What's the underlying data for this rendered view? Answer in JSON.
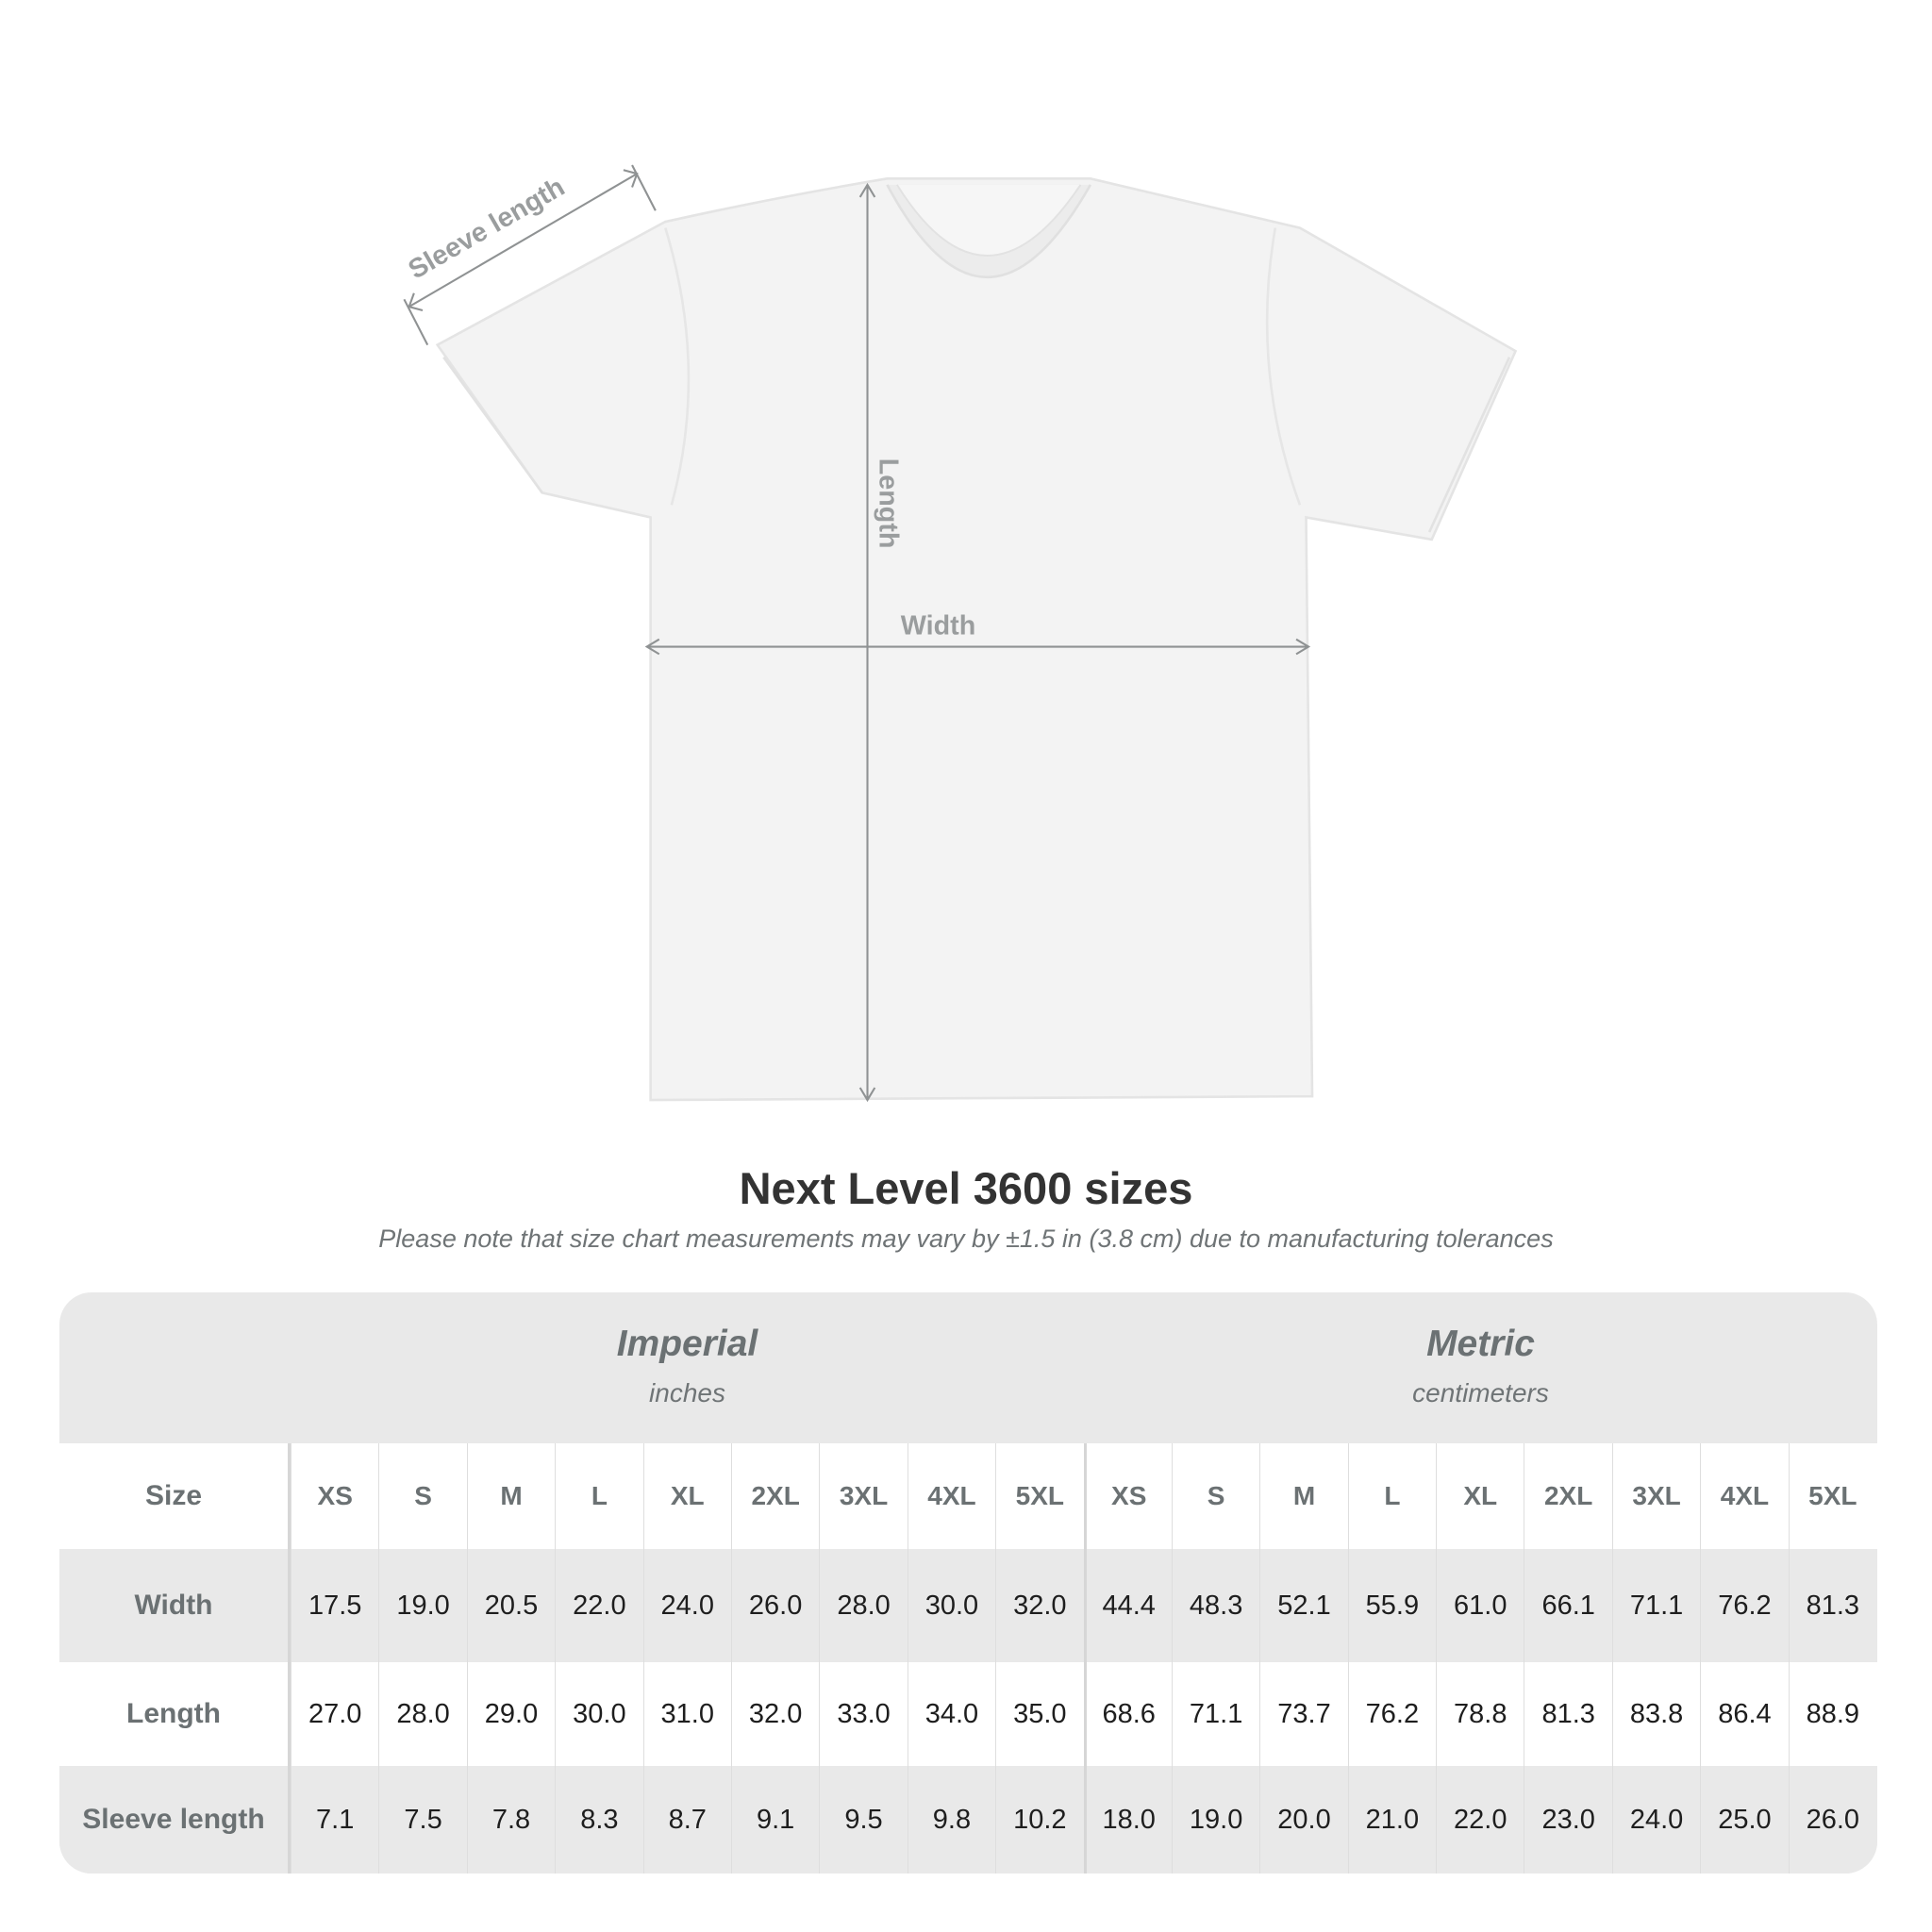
{
  "diagram": {
    "sleeve_label": "Sleeve length",
    "length_label": "Length",
    "width_label": "Width"
  },
  "title": "Next Level 3600 sizes",
  "note": "Please note that size chart measurements may vary by ±1.5 in (3.8 cm) due to manufacturing tolerances",
  "table": {
    "imperial": {
      "label": "Imperial",
      "unit": "inches"
    },
    "metric": {
      "label": "Metric",
      "unit": "centimeters"
    },
    "size_label": "Size",
    "sizes": [
      "XS",
      "S",
      "M",
      "L",
      "XL",
      "2XL",
      "3XL",
      "4XL",
      "5XL"
    ],
    "rows": [
      {
        "label": "Width",
        "imperial": [
          "17.5",
          "19.0",
          "20.5",
          "22.0",
          "24.0",
          "26.0",
          "28.0",
          "30.0",
          "32.0"
        ],
        "metric": [
          "44.4",
          "48.3",
          "52.1",
          "55.9",
          "61.0",
          "66.1",
          "71.1",
          "76.2",
          "81.3"
        ]
      },
      {
        "label": "Length",
        "imperial": [
          "27.0",
          "28.0",
          "29.0",
          "30.0",
          "31.0",
          "32.0",
          "33.0",
          "34.0",
          "35.0"
        ],
        "metric": [
          "68.6",
          "71.1",
          "73.7",
          "76.2",
          "78.8",
          "81.3",
          "83.8",
          "86.4",
          "88.9"
        ]
      },
      {
        "label": "Sleeve length",
        "imperial": [
          "7.1",
          "7.5",
          "7.8",
          "8.3",
          "8.7",
          "9.1",
          "9.5",
          "9.8",
          "10.2"
        ],
        "metric": [
          "18.0",
          "19.0",
          "20.0",
          "21.0",
          "22.0",
          "23.0",
          "24.0",
          "25.0",
          "26.0"
        ]
      }
    ]
  },
  "colors": {
    "label_grey": "#6b7173",
    "band_grey": "#e9e9e9",
    "arrow_grey": "#9a9d9e"
  }
}
